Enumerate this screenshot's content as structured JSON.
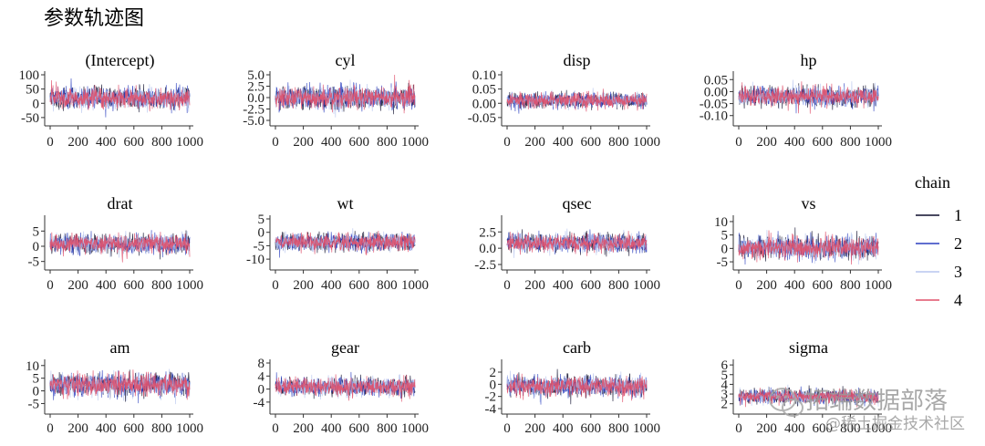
{
  "figure_title": "参数轨迹图",
  "watermark": {
    "line1": "拓端数据部落",
    "line2": "@稀土掘金技术社区"
  },
  "chart_data": {
    "type": "line",
    "x_range": [
      0,
      1000
    ],
    "x_ticks": [
      0,
      200,
      400,
      600,
      800,
      1000
    ],
    "x_tick_labels": [
      "0",
      "200",
      "400",
      "600",
      "800",
      "1000"
    ],
    "legend": {
      "title": "chain",
      "position": "right",
      "entries": [
        {
          "name": "1",
          "color": "#0d0d2b"
        },
        {
          "name": "2",
          "color": "#2b3fbf"
        },
        {
          "name": "3",
          "color": "#b7c6ef"
        },
        {
          "name": "4",
          "color": "#e0506a"
        }
      ]
    },
    "panels": [
      {
        "title": "(Intercept)",
        "ylim": [
          -60,
          100
        ],
        "yticks": [
          -50,
          0,
          50,
          100
        ],
        "ytick_labels": [
          "-50",
          "0",
          "50",
          "100"
        ],
        "center": 18,
        "spread": 18
      },
      {
        "title": "cyl",
        "ylim": [
          -5,
          5
        ],
        "yticks": [
          -5,
          -2.5,
          0,
          2.5,
          5
        ],
        "ytick_labels": [
          "-5.0",
          "-2.5",
          "0.0",
          "2.5",
          "5.0"
        ],
        "center": 0,
        "spread": 1.2
      },
      {
        "title": "disp",
        "ylim": [
          -0.06,
          0.1
        ],
        "yticks": [
          -0.05,
          0,
          0.05,
          0.1
        ],
        "ytick_labels": [
          "-0.05",
          "0.00",
          "0.05",
          "0.10"
        ],
        "center": 0.01,
        "spread": 0.013
      },
      {
        "title": "hp",
        "ylim": [
          -0.12,
          0.07
        ],
        "yticks": [
          -0.1,
          -0.05,
          0,
          0.05
        ],
        "ytick_labels": [
          "-0.10",
          "-0.05",
          "0.00",
          "0.05"
        ],
        "center": -0.02,
        "spread": 0.02
      },
      {
        "title": "drat",
        "ylim": [
          -6,
          9
        ],
        "yticks": [
          -5,
          0,
          5
        ],
        "ytick_labels": [
          "-5",
          "0",
          "5"
        ],
        "center": 0.8,
        "spread": 1.5
      },
      {
        "title": "wt",
        "ylim": [
          -12,
          5
        ],
        "yticks": [
          -10,
          -5,
          0,
          5
        ],
        "ytick_labels": [
          "-10",
          "-5",
          "0",
          "5"
        ],
        "center": -3.7,
        "spread": 1.6
      },
      {
        "title": "qsec",
        "ylim": [
          -2.5,
          4.5
        ],
        "yticks": [
          -2.5,
          0,
          2.5
        ],
        "ytick_labels": [
          "-2.5",
          "0.0",
          "2.5"
        ],
        "center": 0.8,
        "spread": 0.7
      },
      {
        "title": "vs",
        "ylim": [
          -6,
          11
        ],
        "yticks": [
          -5,
          0,
          5,
          10
        ],
        "ytick_labels": [
          "-5",
          "0",
          "5",
          "10"
        ],
        "center": 0.3,
        "spread": 2
      },
      {
        "title": "am",
        "ylim": [
          -7,
          11
        ],
        "yticks": [
          -5,
          0,
          5,
          10
        ],
        "ytick_labels": [
          "-5",
          "0",
          "5",
          "10"
        ],
        "center": 2.5,
        "spread": 2.2
      },
      {
        "title": "gear",
        "ylim": [
          -6,
          8
        ],
        "yticks": [
          -4,
          0,
          4,
          8
        ],
        "ytick_labels": [
          "-4",
          "0",
          "4",
          "8"
        ],
        "center": 0.7,
        "spread": 1.4
      },
      {
        "title": "carb",
        "ylim": [
          -4,
          3.5
        ],
        "yticks": [
          -4,
          -2,
          0,
          2
        ],
        "ytick_labels": [
          "-4",
          "-2",
          "0",
          "2"
        ],
        "center": -0.3,
        "spread": 0.8
      },
      {
        "title": "sigma",
        "ylim": [
          1.5,
          6.2
        ],
        "yticks": [
          2,
          3,
          4,
          5,
          6
        ],
        "ytick_labels": [
          "2",
          "3",
          "4",
          "5",
          "6"
        ],
        "center": 2.75,
        "spread": 0.35
      }
    ]
  }
}
